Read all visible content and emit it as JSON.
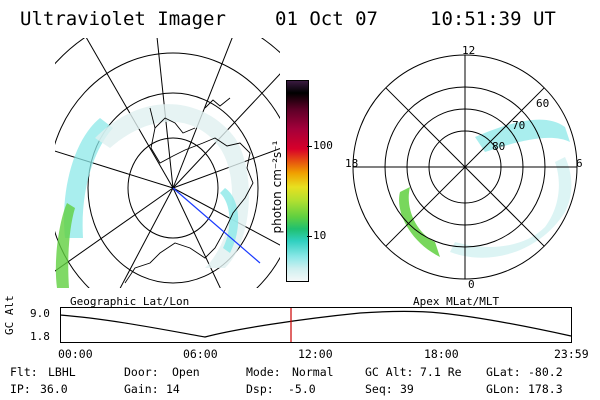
{
  "header": {
    "instrument": "Ultraviolet Imager",
    "date": "01 Oct 07",
    "time": "10:51:39 UT"
  },
  "colorbar": {
    "unit_label": "photon cm⁻²s⁻¹",
    "ticks": [
      "100",
      "10"
    ],
    "colors": [
      "#3a1a40",
      "#000000",
      "#5b0026",
      "#a4003a",
      "#d8002a",
      "#e65010",
      "#f0a000",
      "#e8e020",
      "#b0e030",
      "#60d040",
      "#20c070",
      "#30d0c0",
      "#8ce8e8",
      "#d0f0f0",
      "#f4f8f8"
    ]
  },
  "geo_map": {
    "label": "Geographic Lat/Lon"
  },
  "mlt_dial": {
    "label": "Apex MLat/MLT",
    "hour_labels": {
      "top": "12",
      "left": "18",
      "right": "6",
      "bottom": "0"
    },
    "lat_labels": [
      "60",
      "70",
      "80"
    ]
  },
  "altitude_plot": {
    "axis_label": "GC Alt",
    "y_ticks": [
      "9.0",
      "1.8"
    ],
    "x_ticks": [
      "00:00",
      "06:00",
      "12:00",
      "18:00",
      "23:59"
    ],
    "current_time_marker_color": "#cc0000"
  },
  "footer": {
    "row1": [
      {
        "label": "Flt:",
        "value": "LBHL"
      },
      {
        "label": "Door:",
        "value": "Open"
      },
      {
        "label": "Mode:",
        "value": "Normal"
      },
      {
        "label": "GC Alt:",
        "value": "7.1 Re"
      },
      {
        "label": "GLat:",
        "value": "-80.2"
      }
    ],
    "row2": [
      {
        "label": "IP:",
        "value": "36.0"
      },
      {
        "label": "Gain:",
        "value": "14"
      },
      {
        "label": "Dsp:",
        "value": "-5.0"
      },
      {
        "label": "Seq:",
        "value": "39"
      },
      {
        "label": "GLon:",
        "value": "178.3"
      }
    ]
  }
}
